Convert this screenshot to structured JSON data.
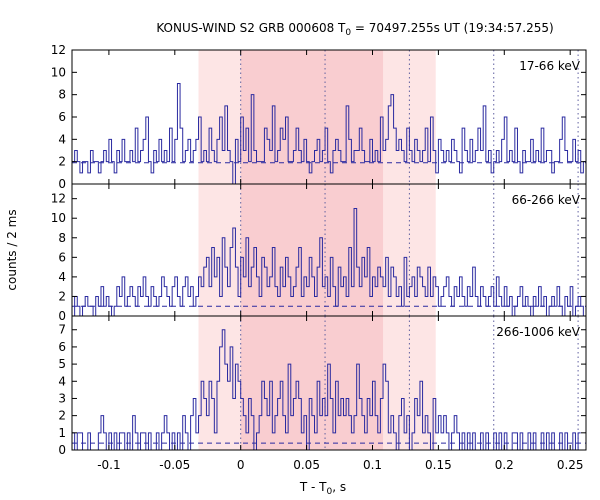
{
  "chart_data": {
    "type": "line",
    "title_main": "KONUS-WIND S2 GRB 000608 T",
    "title_sub": "0",
    "title_rest": " = 70497.255s UT (19:34:57.255)",
    "xlabel_main": "T - T",
    "xlabel_sub": "0",
    "xlabel_rest": ", s",
    "ylabel": "counts / 2 ms",
    "xlim": [
      -0.128,
      0.262
    ],
    "x_ticks": [
      -0.1,
      -0.05,
      0,
      0.05,
      0.1,
      0.15,
      0.2,
      0.25
    ],
    "x_tick_labels": [
      "-0.1",
      "-0.05",
      "0",
      "0.05",
      "0.1",
      "0.15",
      "0.2",
      "0.25"
    ],
    "bin_width": 0.002,
    "light_region": [
      -0.032,
      0.148
    ],
    "dark_region": [
      0.0,
      0.108
    ],
    "vertical_lines": [
      0.0,
      0.064,
      0.128,
      0.192,
      0.256
    ],
    "panels": [
      {
        "label": "17-66 keV",
        "ylim": [
          0,
          12
        ],
        "yticks": [
          0,
          2,
          4,
          6,
          8,
          10,
          12
        ],
        "background": 1.9,
        "counts": [
          2,
          3,
          2,
          1,
          2,
          2,
          1,
          3,
          2,
          2,
          1,
          2,
          3,
          2,
          4,
          2,
          1,
          3,
          2,
          4,
          2,
          2,
          3,
          2,
          5,
          2,
          3,
          4,
          6,
          2,
          1,
          3,
          2,
          4,
          2,
          3,
          2,
          5,
          2,
          4,
          9,
          5,
          2,
          3,
          4,
          2,
          3,
          4,
          6,
          2,
          3,
          2,
          5,
          3,
          2,
          4,
          6,
          3,
          7,
          3,
          2,
          0,
          4,
          2,
          6,
          3,
          5,
          2,
          8,
          3,
          2,
          2,
          2,
          5,
          4,
          3,
          7,
          2,
          3,
          5,
          4,
          6,
          2,
          2,
          3,
          5,
          3,
          2,
          4,
          2,
          1,
          2,
          3,
          4,
          2,
          3,
          5,
          2,
          1,
          3,
          4,
          3,
          2,
          2,
          7,
          4,
          2,
          3,
          3,
          5,
          3,
          2,
          2,
          4,
          2,
          3,
          2,
          6,
          3,
          4,
          7,
          8,
          5,
          3,
          4,
          3,
          2,
          5,
          3,
          2,
          4,
          3,
          2,
          3,
          5,
          2,
          6,
          3,
          1,
          4,
          3,
          2,
          3,
          2,
          4,
          3,
          2,
          1,
          5,
          3,
          2,
          4,
          2,
          3,
          5,
          3,
          7,
          2,
          3,
          1,
          2,
          3,
          2,
          4,
          6,
          2,
          3,
          2,
          5,
          2,
          1,
          3,
          2,
          2,
          4,
          2,
          3,
          2,
          5,
          2,
          3,
          3,
          1,
          2,
          2,
          4,
          6,
          3,
          2,
          2,
          4,
          2,
          3,
          1,
          2
        ]
      },
      {
        "label": "66-266 keV",
        "ylim": [
          0,
          13.5
        ],
        "yticks": [
          0,
          2,
          4,
          6,
          8,
          10,
          12
        ],
        "background": 1.0,
        "counts": [
          0,
          2,
          1,
          0,
          1,
          2,
          1,
          1,
          0,
          2,
          1,
          3,
          1,
          2,
          1,
          0,
          1,
          3,
          2,
          4,
          1,
          2,
          3,
          2,
          1,
          3,
          2,
          4,
          2,
          1,
          3,
          2,
          1,
          2,
          4,
          3,
          2,
          1,
          3,
          4,
          2,
          1,
          3,
          4,
          2,
          3,
          1,
          2,
          4,
          3,
          5,
          6,
          3,
          7,
          4,
          6,
          2,
          8,
          5,
          3,
          7,
          9,
          5,
          2,
          6,
          4,
          8,
          3,
          5,
          7,
          4,
          2,
          6,
          5,
          3,
          4,
          7,
          3,
          2,
          5,
          3,
          6,
          4,
          2,
          3,
          5,
          7,
          2,
          4,
          3,
          6,
          4,
          2,
          5,
          8,
          3,
          4,
          2,
          6,
          3,
          1,
          5,
          3,
          4,
          2,
          7,
          3,
          11,
          5,
          3,
          6,
          4,
          7,
          2,
          4,
          3,
          5,
          4,
          3,
          6,
          2,
          5,
          4,
          2,
          3,
          1,
          6,
          2,
          3,
          4,
          2,
          5,
          4,
          3,
          2,
          5,
          2,
          4,
          3,
          1,
          2,
          3,
          4,
          2,
          1,
          3,
          2,
          4,
          2,
          1,
          3,
          2,
          5,
          2,
          1,
          3,
          2,
          1,
          2,
          3,
          1,
          4,
          2,
          1,
          3,
          1,
          2,
          0,
          1,
          2,
          3,
          1,
          2,
          1,
          0,
          2,
          1,
          3,
          1,
          2,
          0,
          1,
          2,
          1,
          3,
          1,
          0,
          2,
          1,
          3,
          0,
          1,
          2,
          1,
          0
        ]
      },
      {
        "label": "266-1006 keV",
        "ylim": [
          0,
          7.8
        ],
        "yticks": [
          0,
          1,
          2,
          3,
          4,
          5,
          6,
          7
        ],
        "background": 0.4,
        "counts": [
          1,
          0,
          1,
          1,
          0,
          0,
          1,
          0,
          0,
          0,
          1,
          2,
          1,
          0,
          1,
          0,
          1,
          0,
          1,
          1,
          0,
          1,
          0,
          2,
          1,
          0,
          1,
          1,
          0,
          1,
          0,
          0,
          1,
          0,
          1,
          2,
          1,
          0,
          1,
          0,
          1,
          0,
          2,
          1,
          0,
          2,
          3,
          1,
          2,
          4,
          3,
          2,
          4,
          3,
          1,
          4,
          6,
          7,
          5,
          4,
          6,
          3,
          5,
          4,
          3,
          2,
          1,
          3,
          2,
          0,
          1,
          2,
          4,
          3,
          2,
          4,
          1,
          2,
          3,
          4,
          2,
          1,
          5,
          2,
          3,
          4,
          3,
          1,
          2,
          0,
          3,
          2,
          1,
          4,
          2,
          3,
          2,
          5,
          3,
          1,
          4,
          2,
          3,
          2,
          3,
          2,
          1,
          2,
          5,
          3,
          2,
          1,
          3,
          2,
          4,
          2,
          1,
          3,
          5,
          4,
          1,
          2,
          1,
          0,
          2,
          3,
          1,
          2,
          0,
          1,
          3,
          2,
          4,
          1,
          2,
          1,
          0,
          3,
          1,
          2,
          1,
          2,
          1,
          0,
          1,
          2,
          1,
          0,
          1,
          0,
          1,
          0,
          1,
          0,
          0,
          1,
          0,
          1,
          0,
          0,
          1,
          0,
          1,
          0,
          1,
          0,
          0,
          1,
          1,
          0,
          1,
          0,
          0,
          1,
          0,
          1,
          0,
          0,
          1,
          0,
          1,
          0,
          1,
          0,
          0,
          1,
          0,
          1,
          0,
          0,
          1,
          0,
          1
        ]
      }
    ],
    "colors": {
      "curve": "#2a2aa0",
      "background_line": "#2a2aa0",
      "light_region": "#fde5e5",
      "dark_region": "#f9cdd0",
      "dotted": "#6060a0"
    }
  }
}
